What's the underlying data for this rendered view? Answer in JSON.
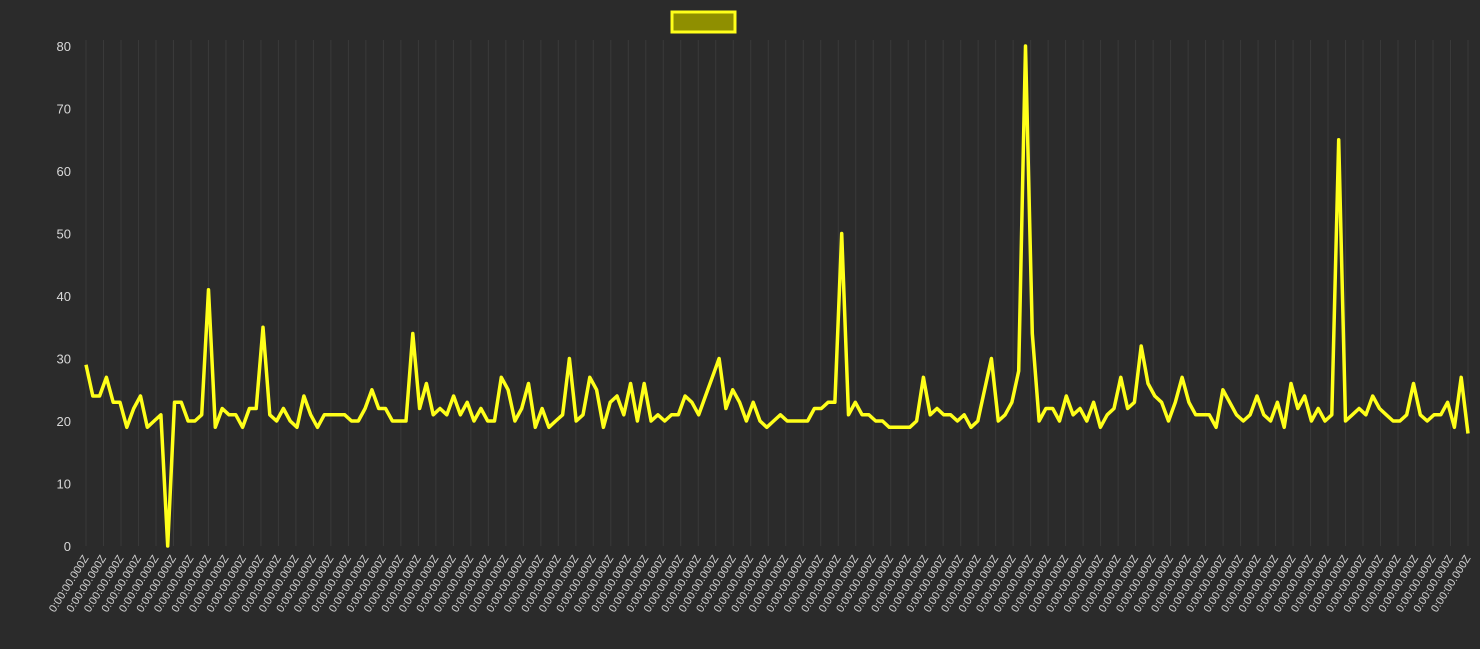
{
  "colors": {
    "background": "#2b2b2b",
    "series_line": "#ffff1a",
    "legend_fill": "#8f8f00",
    "text": "#d8d8d8"
  },
  "legend": {
    "label": ""
  },
  "chart_data": {
    "type": "line",
    "title": "",
    "xlabel": "",
    "ylabel": "",
    "ylim": [
      0,
      80
    ],
    "yticks": [
      "0",
      "10",
      "20",
      "30",
      "40",
      "50",
      "60",
      "70",
      "80"
    ],
    "x_tick_labels": [
      "0:00:00.000Z",
      "0:00:00.000Z",
      "0:00:00.000Z",
      "0:00:00.000Z",
      "0:00:00.000Z",
      "0:00:00.000Z",
      "0:00:00.000Z",
      "0:00:00.000Z",
      "0:00:00.000Z",
      "0:00:00.000Z",
      "0:00:00.000Z",
      "0:00:00.000Z",
      "0:00:00.000Z",
      "0:00:00.000Z",
      "0:00:00.000Z",
      "0:00:00.000Z",
      "0:00:00.000Z",
      "0:00:00.000Z",
      "0:00:00.000Z",
      "0:00:00.000Z",
      "0:00:00.000Z",
      "0:00:00.000Z",
      "0:00:00.000Z",
      "0:00:00.000Z",
      "0:00:00.000Z",
      "0:00:00.000Z",
      "0:00:00.000Z",
      "0:00:00.000Z",
      "0:00:00.000Z",
      "0:00:00.000Z",
      "0:00:00.000Z",
      "0:00:00.000Z",
      "0:00:00.000Z",
      "0:00:00.000Z",
      "0:00:00.000Z",
      "0:00:00.000Z",
      "0:00:00.000Z",
      "0:00:00.000Z",
      "0:00:00.000Z",
      "0:00:00.000Z",
      "0:00:00.000Z",
      "0:00:00.000Z",
      "0:00:00.000Z",
      "0:00:00.000Z",
      "0:00:00.000Z",
      "0:00:00.000Z",
      "0:00:00.000Z",
      "0:00:00.000Z",
      "0:00:00.000Z",
      "0:00:00.000Z",
      "0:00:00.000Z",
      "0:00:00.000Z",
      "0:00:00.000Z",
      "0:00:00.000Z",
      "0:00:00.000Z",
      "0:00:00.000Z",
      "0:00:00.000Z",
      "0:00:00.000Z",
      "0:00:00.000Z",
      "0:00:00.000Z",
      "0:00:00.000Z",
      "0:00:00.000Z",
      "0:00:00.000Z",
      "0:00:00.000Z",
      "0:00:00.000Z",
      "0:00:00.000Z",
      "0:00:00.000Z",
      "0:00:00.000Z",
      "0:00:00.000Z",
      "0:00:00.000Z",
      "0:00:00.000Z",
      "0:00:00.000Z",
      "0:00:00.000Z",
      "0:00:00.000Z",
      "0:00:00.000Z",
      "0:00:00.000Z",
      "0:00:00.000Z",
      "0:00:00.000Z",
      "0:00:00.000Z",
      "0:00:00.000Z"
    ],
    "series": [
      {
        "values": [
          29,
          24,
          24,
          27,
          23,
          23,
          19,
          22,
          24,
          19,
          20,
          21,
          0,
          23,
          23,
          20,
          20,
          21,
          41,
          19,
          22,
          21,
          21,
          19,
          22,
          22,
          35,
          21,
          20,
          22,
          20,
          19,
          24,
          21,
          19,
          21,
          21,
          21,
          21,
          20,
          20,
          22,
          25,
          22,
          22,
          20,
          20,
          20,
          34,
          22,
          26,
          21,
          22,
          21,
          24,
          21,
          23,
          20,
          22,
          20,
          20,
          27,
          25,
          20,
          22,
          26,
          19,
          22,
          19,
          20,
          21,
          30,
          20,
          21,
          27,
          25,
          19,
          23,
          24,
          21,
          26,
          20,
          26,
          20,
          21,
          20,
          21,
          21,
          24,
          23,
          21,
          24,
          27,
          30,
          22,
          25,
          23,
          20,
          23,
          20,
          19,
          20,
          21,
          20,
          20,
          20,
          20,
          22,
          22,
          23,
          23,
          50,
          21,
          23,
          21,
          21,
          20,
          20,
          19,
          19,
          19,
          19,
          20,
          27,
          21,
          22,
          21,
          21,
          20,
          21,
          19,
          20,
          25,
          30,
          20,
          21,
          23,
          28,
          80,
          34,
          20,
          22,
          22,
          20,
          24,
          21,
          22,
          20,
          23,
          19,
          21,
          22,
          27,
          22,
          23,
          32,
          26,
          24,
          23,
          20,
          23,
          27,
          23,
          21,
          21,
          21,
          19,
          25,
          23,
          21,
          20,
          21,
          24,
          21,
          20,
          23,
          19,
          26,
          22,
          24,
          20,
          22,
          20,
          21,
          65,
          20,
          21,
          22,
          21,
          24,
          22,
          21,
          20,
          20,
          21,
          26,
          21,
          20,
          21,
          21,
          23,
          19,
          27,
          18
        ]
      }
    ]
  }
}
